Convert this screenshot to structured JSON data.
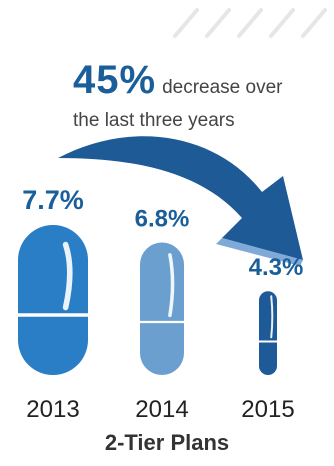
{
  "headline": {
    "percent": "45%",
    "text_line1": "decrease over",
    "text_line2": "the last three years"
  },
  "footer_title": "2-Tier Plans",
  "colors": {
    "pill_2013": "#2a7ec6",
    "pill_2014": "#6b9fd0",
    "pill_2015": "#1f5a98",
    "value_text": "#1a5e9a",
    "year_text": "#222222",
    "arrow": "#1d5a96",
    "stripes": "#e6e6e6"
  },
  "icons": {
    "decorative_stripes": "diagonal-stripes-icon",
    "trend_arrow": "curved-arrow-icon"
  },
  "chart_data": {
    "type": "bar",
    "categories": [
      "2013",
      "2014",
      "2015"
    ],
    "values": [
      7.7,
      6.8,
      4.3
    ],
    "value_labels": [
      "7.7%",
      "6.8%",
      "4.3%"
    ],
    "title": "2-Tier Plans",
    "xlabel": "",
    "ylabel": "",
    "unit": "%"
  }
}
